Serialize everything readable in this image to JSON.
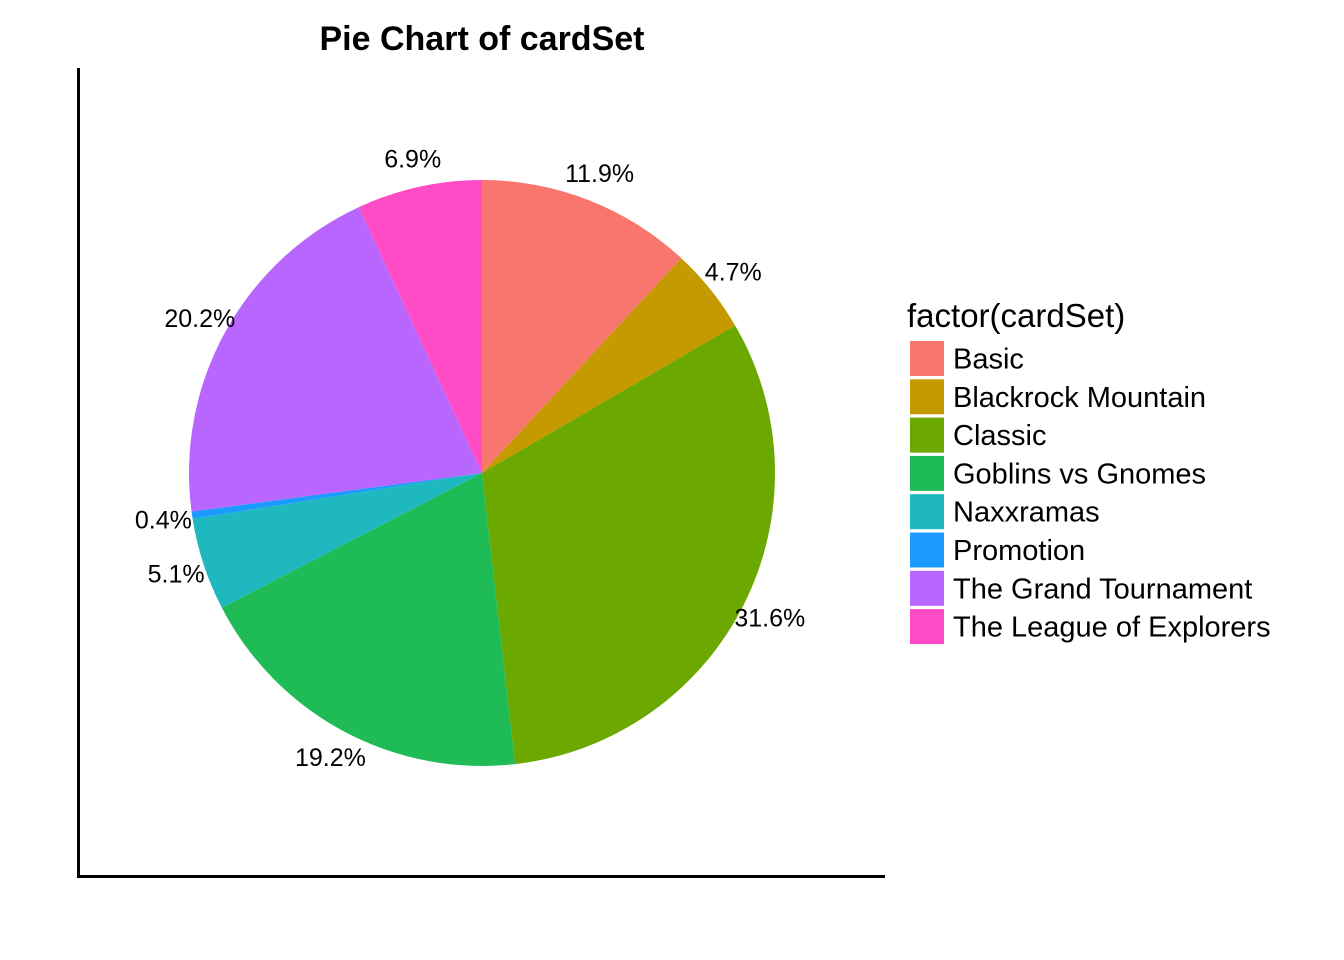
{
  "chart_data": {
    "type": "pie",
    "title": "Pie Chart of cardSet",
    "legend": {
      "title": "factor(cardSet)",
      "position": "right"
    },
    "slices": [
      {
        "category": "Basic",
        "value": 11.9,
        "label": "11.9%",
        "color": "#F8766D"
      },
      {
        "category": "Blackrock Mountain",
        "value": 4.7,
        "label": "4.7%",
        "color": "#C49A00"
      },
      {
        "category": "Classic",
        "value": 31.6,
        "label": "31.6%",
        "color": "#6BA800"
      },
      {
        "category": "Goblins vs Gnomes",
        "value": 19.2,
        "label": "19.2%",
        "color": "#1EBB57"
      },
      {
        "category": "Naxxramas",
        "value": 5.1,
        "label": "5.1%",
        "color": "#1FB8BE"
      },
      {
        "category": "Promotion",
        "value": 0.4,
        "label": "0.4%",
        "color": "#1B9BFF"
      },
      {
        "category": "The Grand Tournament",
        "value": 20.2,
        "label": "20.2%",
        "color": "#B966FF"
      },
      {
        "category": "The League of Explorers",
        "value": 6.9,
        "label": "6.9%",
        "color": "#FF4CC6"
      }
    ],
    "start": "top",
    "direction": "clockwise"
  }
}
